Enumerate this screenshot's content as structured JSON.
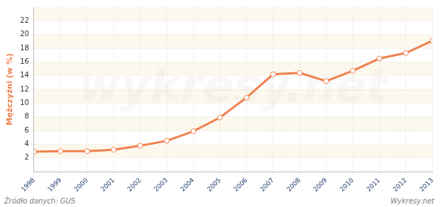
{
  "chart_data": {
    "type": "line",
    "y_label": "Mężczyźni (w %)",
    "categories": [
      "1998",
      "1999",
      "2000",
      "2001",
      "2002",
      "2003",
      "2004",
      "2005",
      "2006",
      "2007",
      "2008",
      "2009",
      "2010",
      "2011",
      "2012",
      "2013"
    ],
    "values": [
      2.9,
      3.0,
      3.0,
      3.2,
      3.8,
      4.5,
      5.9,
      7.9,
      10.8,
      14.2,
      14.4,
      13.2,
      14.7,
      16.5,
      17.3,
      19.1
    ],
    "color": "#f0804f",
    "marker": "circle",
    "ylim": [
      0,
      24
    ],
    "yticks": [
      2,
      4,
      6,
      8,
      10,
      12,
      14,
      16,
      18,
      20,
      22
    ],
    "grid": true,
    "source": "Źródło danych: GUS",
    "credit": "Wykresy.net",
    "watermark": "wykresy.net"
  }
}
